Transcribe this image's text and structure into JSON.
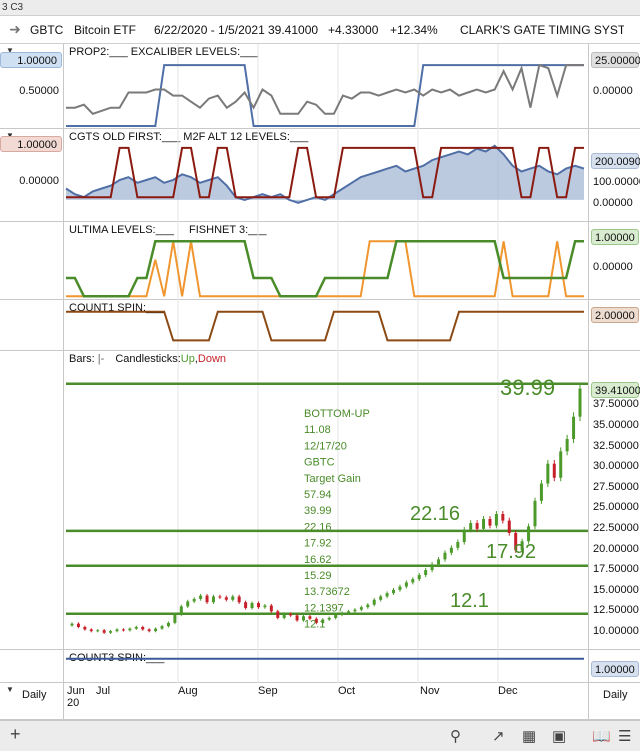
{
  "titlebar": "3 C3",
  "header": {
    "symbol": "GBTC",
    "name": "Bitcoin ETF",
    "range": "6/22/2020 - 1/5/2021",
    "price": "39.41000",
    "change": "+4.33000",
    "pct": "+12.34%",
    "study": "CLARK'S GATE TIMING SYSTEM"
  },
  "panels": {
    "p1": {
      "title": "PROP2:___  EXCALIBER LEVELS:___",
      "left_box": "1.00000",
      "left_mid": "0.50000",
      "right_box": "25.00000",
      "right_mid": "0.00000"
    },
    "p2": {
      "title": "CGTS OLD FIRST:___  M2F ALT 12 LEVELS:___",
      "left_box": "1.00000",
      "left_mid": "0.00000",
      "right_box": "200.00900",
      "right_mid": "100.00000",
      "right_low": "0.00000"
    },
    "p3": {
      "title_a": "ULTIMA LEVELS:___",
      "title_b": "FISHNET 3:___",
      "right_box": "1.00000",
      "right_mid": "0.00000"
    },
    "p4": {
      "title": "COUNT1 SPIN:___",
      "right_box": "2.00000"
    },
    "p6": {
      "title": "COUNT3 SPIN:___",
      "right_box": "1.00000"
    }
  },
  "main": {
    "legend_bars": "Bars:",
    "legend_bars_sym": "|-",
    "legend_candles": "Candlesticks:",
    "legend_up": "Up",
    "legend_sep": ",",
    "legend_down": "Down",
    "price_box": "39.41000",
    "big_label": "39.99",
    "level_labels": [
      "22.16",
      "17.92",
      "12.1"
    ],
    "notes": [
      "BOTTOM-UP",
      "11.08",
      "12/17/20",
      "GBTC",
      "Target Gain",
      "57.94",
      "39.99",
      "22.16",
      "17.92",
      "16.62",
      "15.29",
      "13.73672",
      "12.1397",
      "12.1"
    ]
  },
  "xaxis": {
    "labels": [
      "Jun",
      "Jul",
      "Aug",
      "Sep",
      "Oct",
      "Nov",
      "Dec"
    ],
    "sublabel": "20",
    "period_left": "Daily",
    "period_right": "Daily"
  },
  "colors": {
    "green": "#4a8c2a",
    "blue": "#4f6fa6",
    "grey": "#7a7a7a",
    "darkred": "#8b1a10",
    "orange": "#f0962f",
    "brown": "#8b4a14",
    "navy": "#3b5a9a",
    "up": "#4c9a2a",
    "down": "#c8202a"
  },
  "chart_data": [
    {
      "type": "line",
      "name": "PROP2 / EXCALIBER LEVELS",
      "ylim": [
        0,
        1.15
      ],
      "ticks": [
        "1.00000",
        "0.50000"
      ],
      "series": [
        {
          "name": "PROP2",
          "values": [
            0.3,
            0.3,
            0.35,
            0.2,
            0.25,
            0.3,
            0.3,
            0.55,
            0.55,
            0.55,
            0.6,
            0.6,
            0.5,
            0.5,
            0.4,
            0.3,
            0.45,
            0.5,
            0.3,
            0.4,
            0.55,
            0.3,
            0.6,
            0.5,
            0.2,
            0.2,
            0.2,
            0.4,
            0.35,
            0.2,
            0.2,
            0.5,
            0.45,
            0.55,
            0.55,
            0.5,
            0.55,
            0.6,
            0.55,
            0.6,
            0.5,
            0.6,
            0.55,
            0.6,
            0.5,
            0.55,
            0.6,
            0.55,
            0.6,
            0.9,
            0.6,
            0.95,
            0.3,
            1.0,
            0.95,
            0.5,
            1.0,
            1.0,
            1.0
          ]
        },
        {
          "name": "EXCALIBER LEVELS",
          "values": [
            0,
            0,
            0,
            0,
            0,
            0,
            0,
            0,
            0,
            0,
            0,
            1,
            1,
            1,
            1,
            1,
            1,
            1,
            1,
            1,
            1,
            0,
            0,
            0,
            0,
            0,
            0,
            0,
            0,
            0,
            0,
            0,
            0,
            0,
            0,
            0,
            0,
            0,
            0,
            0,
            1,
            1,
            1,
            1,
            1,
            1,
            1,
            1,
            1,
            1,
            1,
            1,
            1,
            1,
            1,
            1,
            1,
            1,
            1
          ]
        }
      ]
    },
    {
      "type": "area",
      "name": "CGTS OLD FIRST / M2F ALT 12 LEVELS",
      "ylim": [
        -0.3,
        1.0
      ],
      "series": [
        {
          "name": "CGTS OLD FIRST",
          "values": [
            0,
            0,
            0,
            0,
            0,
            0,
            1,
            1,
            0,
            0,
            0,
            0,
            0,
            1,
            1,
            0,
            0,
            1,
            1,
            0,
            0,
            0,
            0,
            0,
            0,
            0,
            1,
            1,
            0,
            0,
            0,
            1,
            1,
            1,
            1,
            1,
            1,
            1,
            1,
            1,
            0,
            0,
            1,
            1,
            1,
            1,
            1,
            1,
            1,
            1,
            1,
            0,
            0,
            1,
            1,
            0,
            0,
            1,
            1
          ]
        },
        {
          "name": "M2F ALT 12 LEVELS",
          "values": [
            0.2,
            0.1,
            0.05,
            0.15,
            0.2,
            0.25,
            0.35,
            0.4,
            0.3,
            0.35,
            0.4,
            0.3,
            0.35,
            0.45,
            0.4,
            0.3,
            0.35,
            0.4,
            0.25,
            0.05,
            0.0,
            0.05,
            0.1,
            0.05,
            0.1,
            0.0,
            -0.05,
            0.0,
            0.05,
            0.0,
            0.1,
            0.2,
            0.3,
            0.4,
            0.45,
            0.5,
            0.55,
            0.6,
            0.5,
            0.55,
            0.6,
            0.7,
            0.75,
            0.8,
            0.85,
            0.8,
            0.9,
            0.85,
            0.95,
            0.8,
            0.6,
            0.5,
            0.55,
            0.6,
            0.5,
            0.45,
            0.55,
            0.6,
            0.55
          ]
        }
      ]
    },
    {
      "type": "line",
      "name": "ULTIMA LEVELS / FISHNET 3",
      "ylim": [
        -0.6,
        1.2
      ],
      "series": [
        {
          "name": "ULTIMA LEVELS",
          "values": [
            0,
            0,
            -0.5,
            -0.5,
            -0.5,
            -0.5,
            -0.5,
            -0.5,
            0,
            0,
            1,
            1,
            1,
            1,
            1,
            1,
            1,
            1,
            1,
            1,
            1,
            0,
            0,
            0,
            -0.5,
            -0.5,
            -0.5,
            -0.5,
            -0.5,
            0,
            0,
            0,
            0,
            0,
            0,
            0,
            0,
            1,
            1,
            1,
            1,
            1,
            1,
            1,
            1,
            1,
            1,
            1,
            1,
            0,
            0,
            0,
            0,
            0,
            0,
            0,
            0,
            1,
            1
          ]
        },
        {
          "name": "FISHNET 3",
          "values": [
            -0.5,
            -0.5,
            -0.5,
            -0.5,
            -0.5,
            -0.5,
            -0.5,
            -0.5,
            -0.5,
            -0.5,
            0.5,
            -0.5,
            1,
            -0.5,
            1,
            -0.5,
            -0.5,
            -0.5,
            -0.5,
            -0.5,
            -0.5,
            -0.5,
            -0.5,
            -0.5,
            -0.5,
            -0.5,
            -0.5,
            -0.5,
            -0.5,
            -0.5,
            -0.5,
            -0.5,
            -0.5,
            -0.5,
            1,
            1,
            1,
            1,
            1,
            -0.5,
            -0.5,
            -0.5,
            -0.5,
            -0.5,
            -0.5,
            -0.5,
            -0.5,
            -0.5,
            -0.5,
            1,
            -0.5,
            -0.5,
            -0.5,
            -0.5,
            -0.5,
            1,
            -0.5,
            -0.5,
            -0.5
          ]
        }
      ]
    },
    {
      "type": "line",
      "name": "COUNT1 SPIN",
      "ylim": [
        0,
        2.3
      ],
      "series": [
        {
          "name": "COUNT1 SPIN",
          "values": [
            2,
            2,
            2,
            2,
            2,
            2,
            2,
            2,
            2,
            2,
            2,
            2,
            0.5,
            0.5,
            0.5,
            0.5,
            0.5,
            2,
            2,
            2,
            2,
            2,
            2,
            0.5,
            0.5,
            0.5,
            0.5,
            0.5,
            0.5,
            0.5,
            2,
            2,
            2,
            2,
            2,
            2,
            0.5,
            0.5,
            0.5,
            0.5,
            0.5,
            0.5,
            0.5,
            0.5,
            2,
            2,
            2,
            2,
            2,
            2,
            2,
            2,
            2,
            2,
            2,
            2,
            2,
            2,
            2
          ]
        }
      ]
    },
    {
      "type": "candlestick",
      "name": "GBTC",
      "ylim": [
        8.8,
        41.3
      ],
      "ticks": [
        "39.41000",
        "37.50000",
        "35.00000",
        "32.50000",
        "30.00000",
        "27.50000",
        "25.00000",
        "22.50000",
        "20.00000",
        "17.50000",
        "15.00000",
        "12.50000",
        "10.00000"
      ],
      "levels": [
        39.99,
        22.16,
        17.92,
        12.1
      ],
      "close": [
        10.9,
        10.5,
        10.2,
        10.0,
        10.1,
        9.8,
        10.0,
        10.2,
        10.1,
        10.3,
        10.5,
        10.2,
        10.0,
        10.3,
        10.6,
        11.0,
        12.0,
        13.0,
        13.6,
        13.9,
        14.3,
        13.5,
        14.2,
        14.1,
        13.8,
        14.2,
        13.5,
        12.8,
        13.4,
        12.9,
        13.1,
        12.4,
        11.6,
        12.1,
        11.9,
        11.3,
        11.8,
        11.5,
        11.0,
        11.4,
        11.6,
        12.0,
        12.2,
        12.4,
        12.6,
        12.9,
        13.2,
        13.8,
        14.2,
        14.6,
        15.0,
        15.4,
        15.9,
        16.3,
        16.8,
        17.4,
        18.1,
        18.7,
        19.5,
        20.1,
        20.8,
        22.3,
        23.1,
        22.4,
        23.6,
        22.8,
        24.2,
        23.4,
        21.9,
        19.8,
        20.9,
        22.7,
        25.8,
        27.9,
        30.3,
        28.6,
        31.8,
        33.3,
        36.0,
        39.41
      ]
    },
    {
      "type": "line",
      "name": "COUNT3 SPIN",
      "ylim": [
        0,
        1.2
      ],
      "series": [
        {
          "name": "COUNT3 SPIN",
          "values": [
            1,
            1,
            1,
            1,
            1,
            1,
            1,
            1,
            1,
            1
          ]
        }
      ]
    }
  ]
}
